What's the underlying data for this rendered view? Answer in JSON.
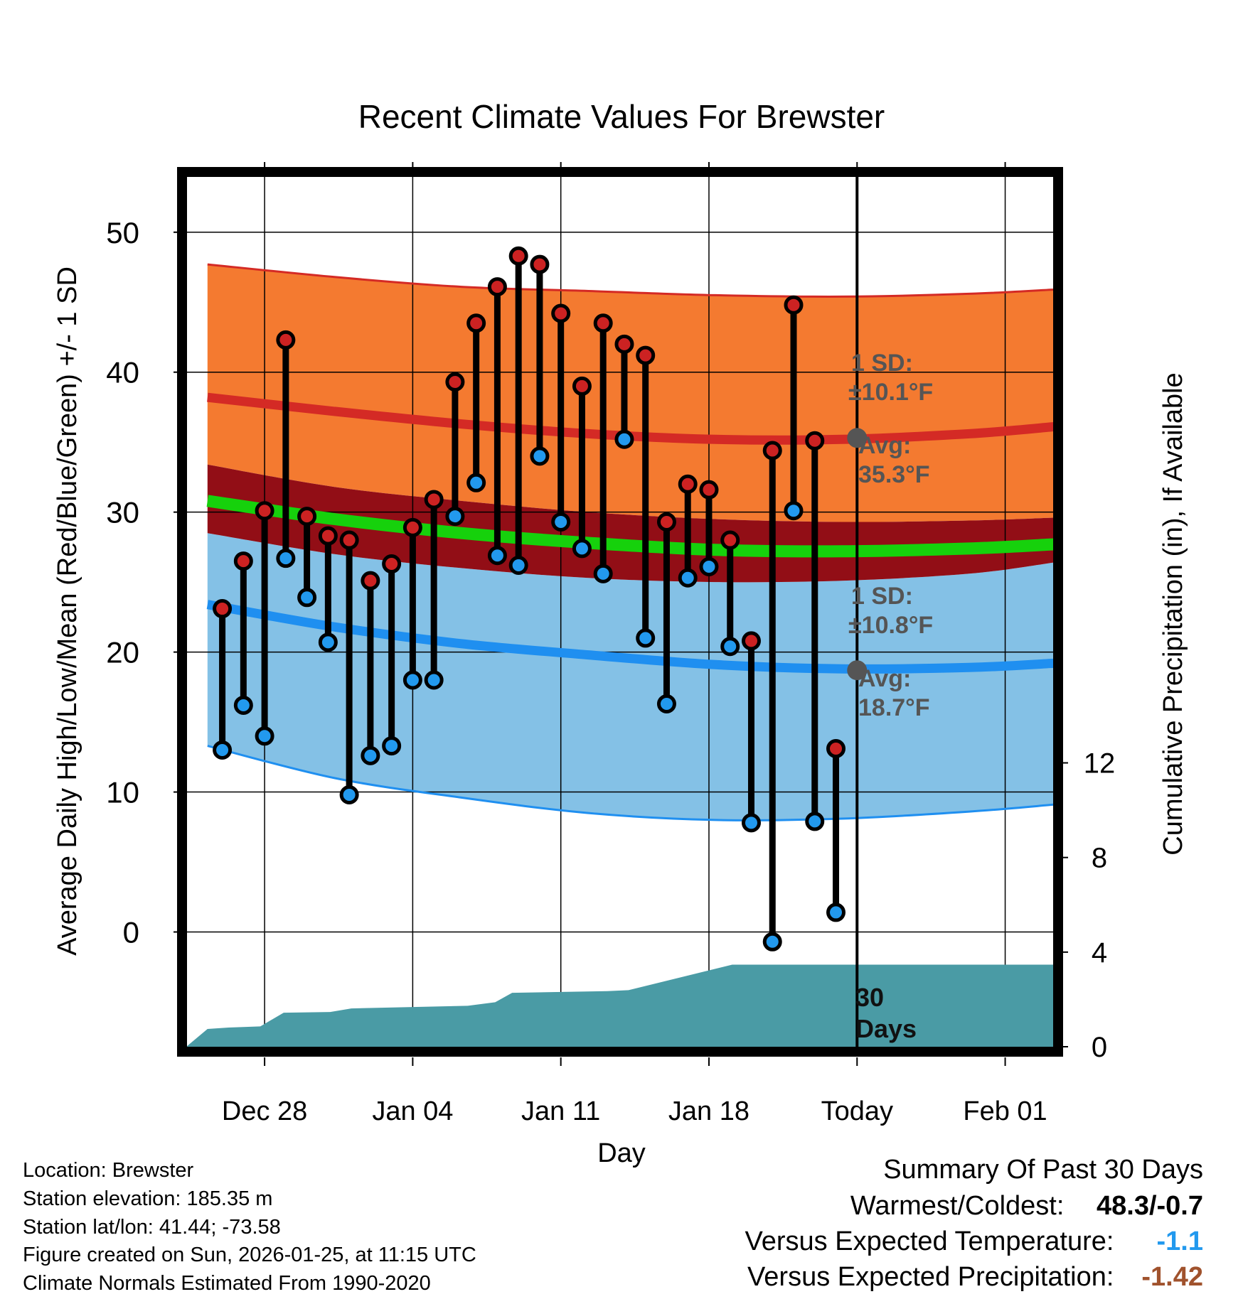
{
  "chart_data": {
    "type": "line",
    "title": "Recent Climate Values For Brewster",
    "xlabel": "Day",
    "ylabel": "Average Daily High/Low/Mean (Red/Blue/Green) +/- 1 SD",
    "y2label": "Cumulative Precipitation (in), If Available",
    "ylim": [
      -8.2,
      54
    ],
    "y2lim": [
      0,
      36.8
    ],
    "xlim": [
      -3.7,
      37.3
    ],
    "grid": true,
    "x_ticks": [
      {
        "day": 0,
        "label": "Dec 28"
      },
      {
        "day": 7,
        "label": "Jan 04"
      },
      {
        "day": 14,
        "label": "Jan 11"
      },
      {
        "day": 21,
        "label": "Jan 18"
      },
      {
        "day": 28,
        "label": "Today"
      },
      {
        "day": 35,
        "label": "Feb 01"
      }
    ],
    "y_ticks": [
      0,
      10,
      20,
      30,
      40,
      50
    ],
    "y2_ticks": [
      0,
      4,
      8,
      12
    ],
    "today_day": 28,
    "normals": {
      "x": [
        -2.7,
        3.3,
        9.3,
        15.3,
        21.3,
        27.3,
        33.3,
        37.3
      ],
      "high_avg": [
        38.2,
        37.2,
        36.3,
        35.6,
        35.2,
        35.2,
        35.6,
        36.1
      ],
      "high_plus_sd": [
        47.7,
        46.8,
        46.1,
        45.8,
        45.5,
        45.4,
        45.6,
        45.9
      ],
      "high_minus_sd": [
        33.4,
        31.8,
        30.8,
        30.0,
        29.5,
        29.3,
        29.4,
        29.6
      ],
      "mean": [
        30.8,
        29.5,
        28.5,
        27.8,
        27.3,
        27.2,
        27.4,
        27.7
      ],
      "low_avg": [
        23.4,
        21.8,
        20.6,
        19.8,
        19.1,
        18.8,
        18.9,
        19.2
      ],
      "low_plus_sd": [
        28.5,
        27.0,
        26.0,
        25.3,
        25.0,
        25.1,
        25.6,
        26.4
      ],
      "low_minus_sd": [
        13.3,
        11.0,
        9.6,
        8.5,
        8.0,
        8.1,
        8.6,
        9.1
      ]
    },
    "series": [
      {
        "name": "Daily High",
        "x": [
          -2,
          -1,
          0,
          1,
          2,
          3,
          4,
          5,
          6,
          7,
          8,
          9,
          10,
          11,
          12,
          13,
          14,
          15,
          16,
          17,
          18,
          19,
          20,
          21,
          22,
          23,
          24,
          25,
          26,
          27
        ],
        "values": [
          23.1,
          26.5,
          30.1,
          42.3,
          29.7,
          28.3,
          28.0,
          25.1,
          26.3,
          28.9,
          30.9,
          39.3,
          43.5,
          46.1,
          48.3,
          47.7,
          44.2,
          39.0,
          43.5,
          42.0,
          41.2,
          29.3,
          32.0,
          31.6,
          28.0,
          20.8,
          34.4,
          44.8,
          35.1,
          13.1
        ],
        "color": "#cc2222"
      },
      {
        "name": "Daily Low",
        "x": [
          -2,
          -1,
          0,
          1,
          2,
          3,
          4,
          5,
          6,
          7,
          8,
          9,
          10,
          11,
          12,
          13,
          14,
          15,
          16,
          17,
          18,
          19,
          20,
          21,
          22,
          23,
          24,
          25,
          26,
          27
        ],
        "values": [
          13.0,
          16.2,
          14.0,
          26.7,
          23.9,
          20.7,
          9.8,
          12.6,
          13.3,
          18.0,
          18.0,
          29.7,
          32.1,
          26.9,
          26.2,
          34.0,
          29.3,
          27.4,
          25.6,
          35.2,
          21.0,
          16.3,
          25.3,
          26.1,
          20.4,
          7.8,
          -0.7,
          30.1,
          7.9,
          1.4
        ],
        "color": "#2299ee"
      },
      {
        "name": "Cumulative Precipitation",
        "x": [
          -3.7,
          -2.7,
          -1.7,
          -0.2,
          0.9,
          3.1,
          4.1,
          9.6,
          10.9,
          11.7,
          16.2,
          17.2,
          22.1,
          34.8,
          37.3
        ],
        "values": [
          0,
          0.75,
          0.81,
          0.86,
          1.44,
          1.47,
          1.62,
          1.73,
          1.88,
          2.28,
          2.35,
          2.39,
          3.47,
          3.47,
          3.47
        ],
        "color": "#4a9ba5"
      }
    ],
    "annotations": {
      "high_sd_label": "1 SD:",
      "high_sd_value": "±10.1°F",
      "high_avg_label": "Avg:",
      "high_avg_value": "35.3°F",
      "low_sd_label": "1 SD:",
      "low_sd_value": "±10.8°F",
      "low_avg_label": "Avg:",
      "low_avg_value": "18.7°F",
      "window_value": "30",
      "window_unit": "Days"
    },
    "annotation_values": {
      "high_avg": 35.3,
      "low_avg": 18.7
    }
  },
  "footer": {
    "location": "Location: Brewster",
    "elevation": "Station elevation: 185.35 m",
    "latlon": "Station lat/lon: 41.44; -73.58",
    "created": "Figure created on Sun, 2026-01-25, at 11:15 UTC",
    "normals": "Climate Normals Estimated From 1990-2020"
  },
  "summary": {
    "title": "Summary Of Past 30 Days",
    "warm_cold_label": "Warmest/Coldest:",
    "warm_cold_value": "48.3/-0.7",
    "temp_label": "Versus Expected Temperature:",
    "temp_value": "-1.1",
    "precip_label": "Versus Expected Precipitation:",
    "precip_value": "-1.42"
  },
  "colors": {
    "high_band": "#f47a30",
    "high_line": "#d42a25",
    "mid_band": "#920e16",
    "mean_line": "#16d10c",
    "low_band": "#84c1e6",
    "low_line": "#1f8ff0",
    "precip_fill": "#4a9ba5",
    "label_gray": "#555555",
    "temp_anomaly": "#2299ee",
    "precip_anomaly": "#a0522d"
  }
}
